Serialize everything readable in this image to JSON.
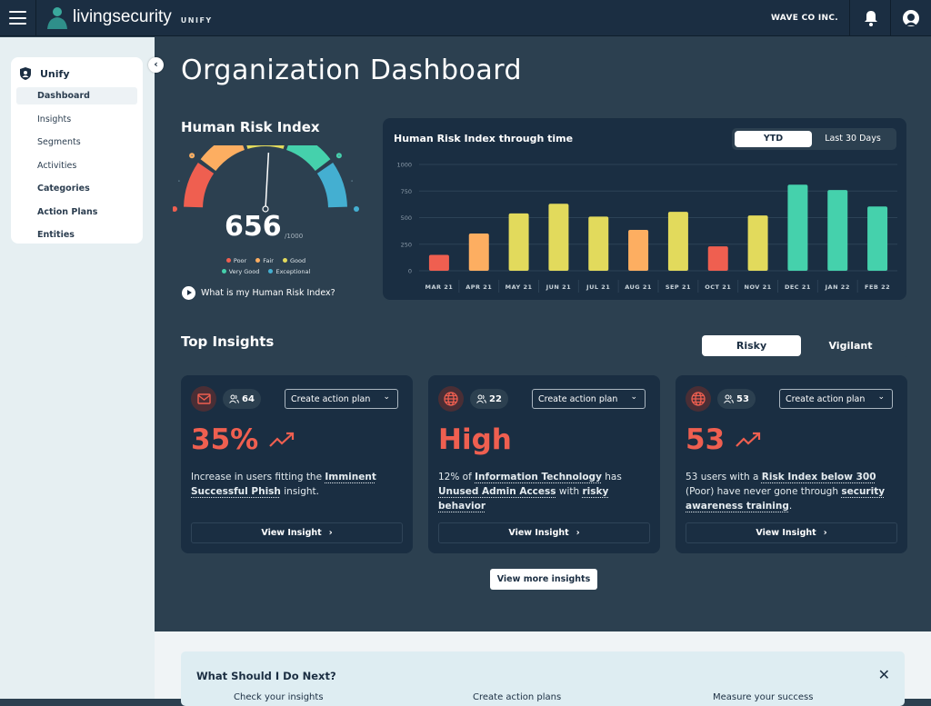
{
  "header": {
    "brand": "livingsecurity",
    "brand_light": "living",
    "brand_bold": "security",
    "product": "UNIFY",
    "company": "WAVE CO INC."
  },
  "sidebar": {
    "section": "Unify",
    "items": [
      {
        "label": "Dashboard",
        "active": true
      },
      {
        "label": "Insights"
      },
      {
        "label": "Segments"
      },
      {
        "label": "Activities"
      },
      {
        "label": "Categories"
      },
      {
        "label": "Action Plans"
      },
      {
        "label": "Entities"
      }
    ]
  },
  "page": {
    "title": "Organization Dashboard"
  },
  "hri": {
    "title": "Human Risk Index",
    "score": "656",
    "score_value": 656,
    "max": "/1000",
    "legend": [
      {
        "label": "Poor",
        "color": "#ef5f50"
      },
      {
        "label": "Fair",
        "color": "#fdae61"
      },
      {
        "label": "Good",
        "color": "#e2da5c"
      },
      {
        "label": "Very Good",
        "color": "#45d1ac"
      },
      {
        "label": "Exceptional",
        "color": "#44afd1"
      }
    ],
    "help_link": "What is my Human Risk Index?"
  },
  "chart_data": {
    "type": "bar",
    "title": "Human Risk Index through time",
    "categories": [
      "MAR 21",
      "APR 21",
      "MAY 21",
      "JUN 21",
      "JUL 21",
      "AUG 21",
      "SEP 21",
      "OCT 21",
      "NOV 21",
      "DEC 21",
      "JAN 22",
      "FEB 22"
    ],
    "values": [
      150,
      350,
      540,
      630,
      510,
      385,
      555,
      230,
      520,
      810,
      760,
      605
    ],
    "colors": [
      "#ef5f50",
      "#fdae61",
      "#e2da5c",
      "#e2da5c",
      "#e2da5c",
      "#fdae61",
      "#e2da5c",
      "#ef5f50",
      "#e2da5c",
      "#45d1ac",
      "#45d1ac",
      "#45d1ac"
    ],
    "yticks": [
      "0",
      "250",
      "500",
      "750",
      "1000"
    ],
    "ylim": [
      0,
      1000
    ],
    "grid": true,
    "xlabel": "",
    "ylabel": ""
  },
  "chart_toggle": {
    "options": [
      "YTD",
      "Last 30 Days"
    ],
    "selected": "YTD"
  },
  "insights": {
    "title": "Top Insights",
    "toggle": {
      "options": [
        "Risky",
        "Vigilant"
      ],
      "selected": "Risky"
    },
    "cards": [
      {
        "icon": "mail-icon",
        "users": "64",
        "metric": "35%",
        "trend": true,
        "action": "Create action plan",
        "desc": [
          {
            "t": "Increase in users fitting the "
          },
          {
            "t": "Imminent Successful Phish",
            "b": true
          },
          {
            "t": " insight."
          }
        ],
        "view": "View Insight"
      },
      {
        "icon": "globe-icon",
        "users": "22",
        "metric": "High",
        "trend": false,
        "action": "Create action plan",
        "desc": [
          {
            "t": "12% of "
          },
          {
            "t": "Information Technology",
            "b": true
          },
          {
            "t": " has "
          },
          {
            "t": "Unused Admin Access",
            "b": true
          },
          {
            "t": " with "
          },
          {
            "t": "risky behavior",
            "b": true
          }
        ],
        "view": "View Insight"
      },
      {
        "icon": "globe-icon",
        "users": "53",
        "metric": "53",
        "trend": true,
        "action": "Create action plan",
        "desc": [
          {
            "t": "53 users with a "
          },
          {
            "t": "Risk Index below 300",
            "b": true
          },
          {
            "t": " (Poor) have never gone through "
          },
          {
            "t": "security awareness training",
            "b": true
          },
          {
            "t": "."
          }
        ],
        "view": "View Insight"
      }
    ],
    "more": "View more insights"
  },
  "next": {
    "title": "What Should I Do Next?",
    "steps": [
      "Check your insights",
      "Create action plans",
      "Measure your success"
    ]
  }
}
